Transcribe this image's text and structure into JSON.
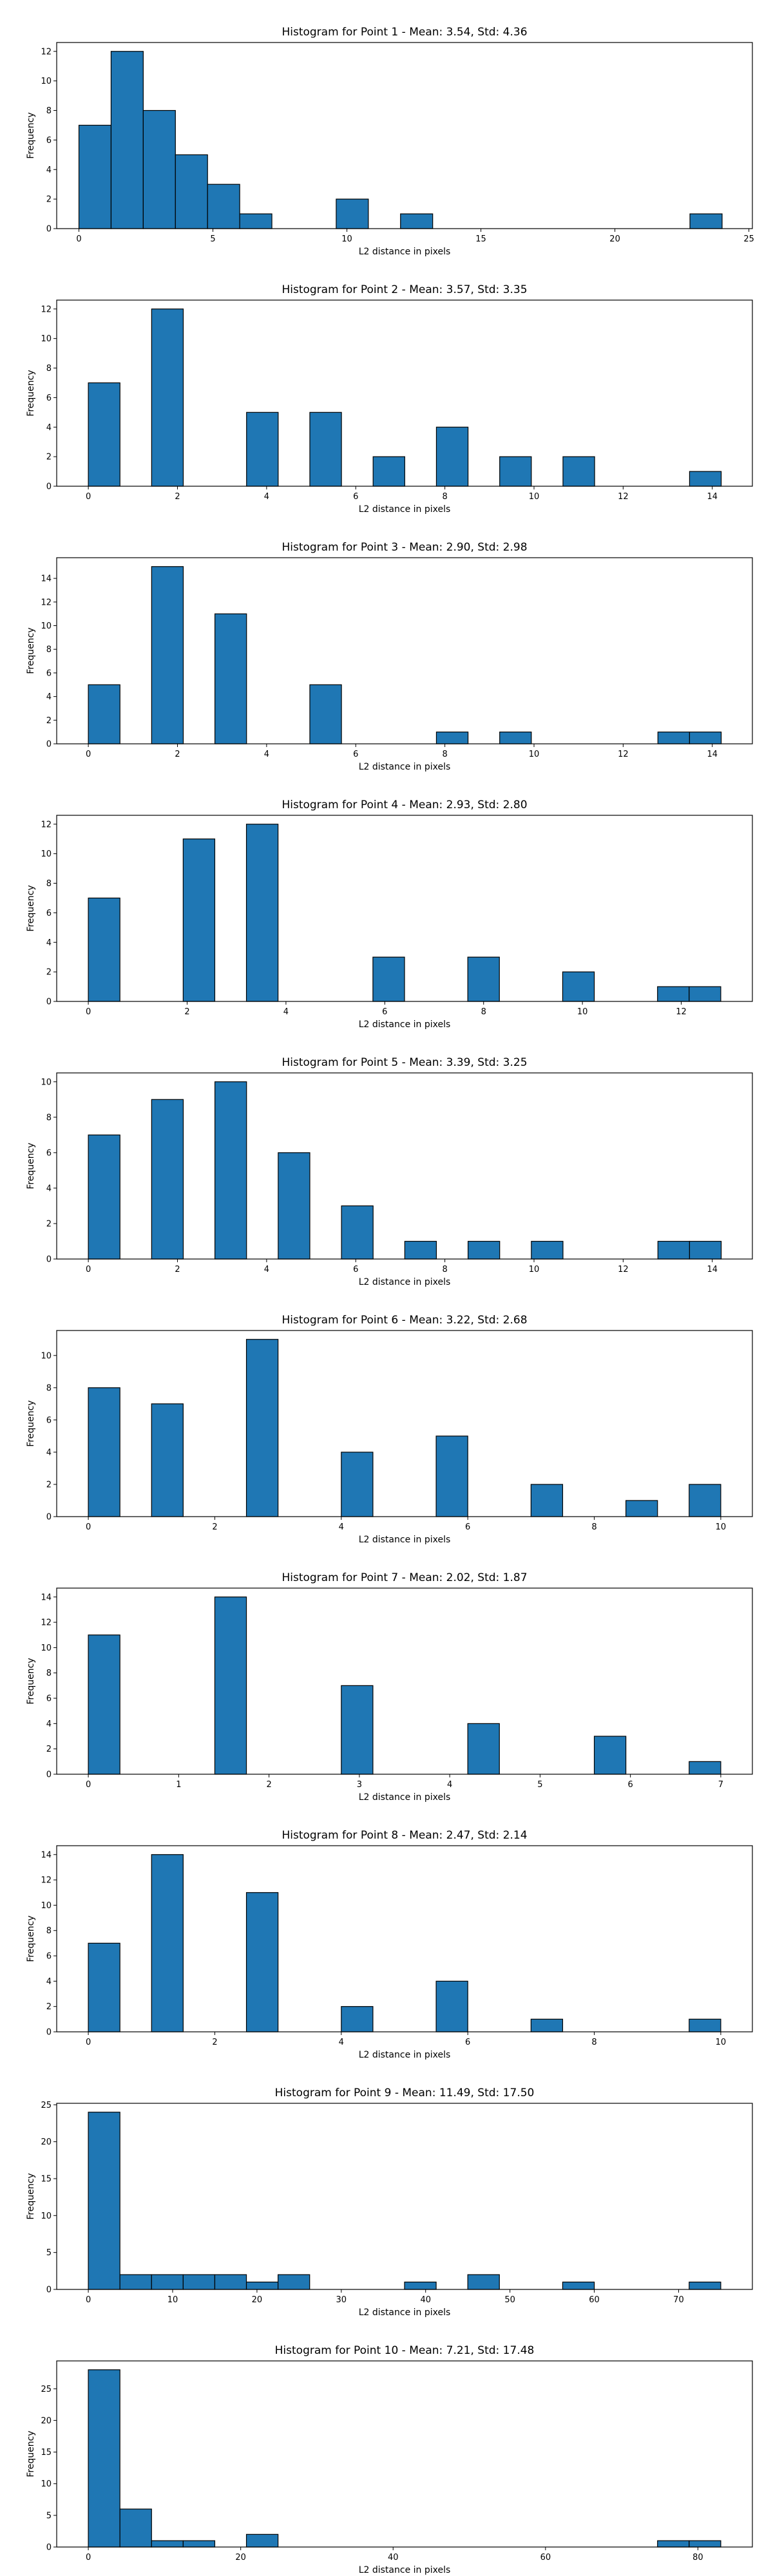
{
  "chart_data": [
    {
      "type": "bar",
      "title": "Histogram for Point 1 - Mean: 3.54, Std: 4.36",
      "xlabel": "L2 distance in pixels",
      "ylabel": "Frequency",
      "bins": {
        "start": 0,
        "width": 1.2
      },
      "counts": [
        7,
        12,
        8,
        5,
        3,
        1,
        0,
        0,
        2,
        0,
        1,
        0,
        0,
        0,
        0,
        0,
        0,
        0,
        0,
        1
      ],
      "xlim": [
        -0.83,
        25.13
      ],
      "ylim": [
        0,
        12.6
      ],
      "xticks": [
        0,
        5,
        10,
        15,
        20,
        25
      ],
      "yticks": [
        0,
        2,
        4,
        6,
        8,
        10,
        12
      ],
      "color": "#1f77b4"
    },
    {
      "type": "bar",
      "title": "Histogram for Point 2 - Mean: 3.57, Std: 3.35",
      "xlabel": "L2 distance in pixels",
      "ylabel": "Frequency",
      "bins": {
        "start": 0,
        "width": 0.71
      },
      "counts": [
        7,
        0,
        12,
        0,
        0,
        5,
        0,
        5,
        0,
        2,
        0,
        4,
        0,
        2,
        0,
        2,
        0,
        0,
        0,
        1
      ],
      "xlim": [
        -0.71,
        14.9
      ],
      "ylim": [
        0,
        12.6
      ],
      "xticks": [
        0,
        2,
        4,
        6,
        8,
        10,
        12,
        14
      ],
      "yticks": [
        0,
        2,
        4,
        6,
        8,
        10,
        12
      ],
      "color": "#1f77b4"
    },
    {
      "type": "bar",
      "title": "Histogram for Point 3 - Mean: 2.90, Std: 2.98",
      "xlabel": "L2 distance in pixels",
      "ylabel": "Frequency",
      "bins": {
        "start": 0,
        "width": 0.71
      },
      "counts": [
        5,
        0,
        15,
        0,
        11,
        0,
        0,
        5,
        0,
        0,
        0,
        1,
        0,
        1,
        0,
        0,
        0,
        0,
        1,
        1
      ],
      "xlim": [
        -0.71,
        14.9
      ],
      "ylim": [
        0,
        15.75
      ],
      "xticks": [
        0,
        2,
        4,
        6,
        8,
        10,
        12,
        14
      ],
      "yticks": [
        0,
        2,
        4,
        6,
        8,
        10,
        12,
        14
      ],
      "color": "#1f77b4"
    },
    {
      "type": "bar",
      "title": "Histogram for Point 4 - Mean: 2.93, Std: 2.80",
      "xlabel": "L2 distance in pixels",
      "ylabel": "Frequency",
      "bins": {
        "start": 0,
        "width": 0.64
      },
      "counts": [
        7,
        0,
        0,
        11,
        0,
        12,
        0,
        0,
        0,
        3,
        0,
        0,
        3,
        0,
        0,
        2,
        0,
        0,
        1,
        1
      ],
      "xlim": [
        -0.64,
        13.44
      ],
      "ylim": [
        0,
        12.6
      ],
      "xticks": [
        0,
        2,
        4,
        6,
        8,
        10,
        12
      ],
      "yticks": [
        0,
        2,
        4,
        6,
        8,
        10,
        12
      ],
      "color": "#1f77b4"
    },
    {
      "type": "bar",
      "title": "Histogram for Point 5 - Mean: 3.39, Std: 3.25",
      "xlabel": "L2 distance in pixels",
      "ylabel": "Frequency",
      "bins": {
        "start": 0,
        "width": 0.71
      },
      "counts": [
        7,
        0,
        9,
        0,
        10,
        0,
        6,
        0,
        3,
        0,
        1,
        0,
        1,
        0,
        1,
        0,
        0,
        0,
        1,
        1
      ],
      "xlim": [
        -0.71,
        14.9
      ],
      "ylim": [
        0,
        10.5
      ],
      "xticks": [
        0,
        2,
        4,
        6,
        8,
        10,
        12,
        14
      ],
      "yticks": [
        0,
        2,
        4,
        6,
        8,
        10
      ],
      "color": "#1f77b4"
    },
    {
      "type": "bar",
      "title": "Histogram for Point 6 - Mean: 3.22, Std: 2.68",
      "xlabel": "L2 distance in pixels",
      "ylabel": "Frequency",
      "bins": {
        "start": 0,
        "width": 0.5
      },
      "counts": [
        8,
        0,
        7,
        0,
        0,
        11,
        0,
        0,
        4,
        0,
        0,
        5,
        0,
        0,
        2,
        0,
        0,
        1,
        0,
        2
      ],
      "xlim": [
        -0.5,
        10.5
      ],
      "ylim": [
        0,
        11.55
      ],
      "xticks": [
        0,
        2,
        4,
        6,
        8,
        10
      ],
      "yticks": [
        0,
        2,
        4,
        6,
        8,
        10
      ],
      "color": "#1f77b4"
    },
    {
      "type": "bar",
      "title": "Histogram for Point 7 - Mean: 2.02, Std: 1.87",
      "xlabel": "L2 distance in pixels",
      "ylabel": "Frequency",
      "bins": {
        "start": 0,
        "width": 0.35
      },
      "counts": [
        11,
        0,
        0,
        0,
        14,
        0,
        0,
        0,
        7,
        0,
        0,
        0,
        4,
        0,
        0,
        0,
        3,
        0,
        0,
        1
      ],
      "xlim": [
        -0.35,
        7.35
      ],
      "ylim": [
        0,
        14.7
      ],
      "xticks": [
        0,
        1,
        2,
        3,
        4,
        5,
        6,
        7
      ],
      "yticks": [
        0,
        2,
        4,
        6,
        8,
        10,
        12,
        14
      ],
      "color": "#1f77b4"
    },
    {
      "type": "bar",
      "title": "Histogram for Point 8 - Mean: 2.47, Std: 2.14",
      "xlabel": "L2 distance in pixels",
      "ylabel": "Frequency",
      "bins": {
        "start": 0,
        "width": 0.5
      },
      "counts": [
        7,
        0,
        14,
        0,
        0,
        11,
        0,
        0,
        2,
        0,
        0,
        4,
        0,
        0,
        1,
        0,
        0,
        0,
        0,
        1
      ],
      "xlim": [
        -0.5,
        10.5
      ],
      "ylim": [
        0,
        14.7
      ],
      "xticks": [
        0,
        2,
        4,
        6,
        8,
        10
      ],
      "yticks": [
        0,
        2,
        4,
        6,
        8,
        10,
        12,
        14
      ],
      "color": "#1f77b4"
    },
    {
      "type": "bar",
      "title": "Histogram for Point 9 - Mean: 11.49, Std: 17.50",
      "xlabel": "L2 distance in pixels",
      "ylabel": "Frequency",
      "bins": {
        "start": 0,
        "width": 3.75
      },
      "counts": [
        24,
        2,
        2,
        2,
        2,
        1,
        2,
        0,
        0,
        0,
        1,
        0,
        2,
        0,
        0,
        1,
        0,
        0,
        0,
        1
      ],
      "xlim": [
        -3.75,
        78.75
      ],
      "ylim": [
        0,
        25.2
      ],
      "xticks": [
        0,
        10,
        20,
        30,
        40,
        50,
        60,
        70
      ],
      "yticks": [
        0,
        5,
        10,
        15,
        20,
        25
      ],
      "color": "#1f77b4"
    },
    {
      "type": "bar",
      "title": "Histogram for Point 10 - Mean: 7.21, Std: 17.48",
      "xlabel": "L2 distance in pixels",
      "ylabel": "Frequency",
      "bins": {
        "start": 0,
        "width": 4.15
      },
      "counts": [
        28,
        6,
        1,
        1,
        0,
        2,
        0,
        0,
        0,
        0,
        0,
        0,
        0,
        0,
        0,
        0,
        0,
        0,
        1,
        1
      ],
      "xlim": [
        -4.15,
        87.15
      ],
      "ylim": [
        0,
        29.4
      ],
      "xticks": [
        0,
        20,
        40,
        60,
        80
      ],
      "yticks": [
        0,
        5,
        10,
        15,
        20,
        25
      ],
      "color": "#1f77b4"
    }
  ]
}
